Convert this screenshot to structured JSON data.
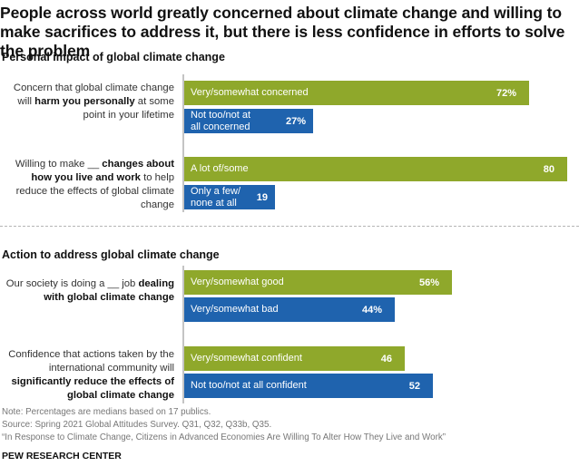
{
  "title": "People across world greatly concerned about climate change and willing to make sacrifices to address it, but there is less confidence in efforts to solve the problem",
  "colors": {
    "green": "#8fa82b",
    "blue": "#1f63ae"
  },
  "chart_data": {
    "type": "bar",
    "orientation": "horizontal",
    "unit": "%",
    "xlim": [
      0,
      80
    ],
    "sections": [
      {
        "title": "Personal impact of global climate change",
        "rows": [
          {
            "label_parts": [
              {
                "text": "Concern that global climate change will ",
                "bold": false
              },
              {
                "text": "harm you personally",
                "bold": true
              },
              {
                "text": " at some point in your lifetime",
                "bold": false
              }
            ],
            "bars": [
              {
                "category": "Very/somewhat concerned",
                "value": 72,
                "display": "72%",
                "color": "green"
              },
              {
                "category": "Not too/not at all concerned",
                "value": 27,
                "display": "27%",
                "color": "blue"
              }
            ]
          },
          {
            "label_parts": [
              {
                "text": "Willing to make __ ",
                "bold": false
              },
              {
                "text": "changes about how you live and work",
                "bold": true
              },
              {
                "text": " to help reduce the effects of global climate change",
                "bold": false
              }
            ],
            "bars": [
              {
                "category": "A lot of/some",
                "value": 80,
                "display": "80",
                "color": "green"
              },
              {
                "category": "Only a few/ none at all",
                "value": 19,
                "display": "19",
                "color": "blue"
              }
            ]
          }
        ]
      },
      {
        "title": "Action to address global climate change",
        "rows": [
          {
            "label_parts": [
              {
                "text": "Our society is doing a __ job ",
                "bold": false
              },
              {
                "text": "dealing with global climate change",
                "bold": true
              }
            ],
            "bars": [
              {
                "category": "Very/somewhat good",
                "value": 56,
                "display": "56%",
                "color": "green"
              },
              {
                "category": "Very/somewhat bad",
                "value": 44,
                "display": "44%",
                "color": "blue"
              }
            ]
          },
          {
            "label_parts": [
              {
                "text": "Confidence that actions taken by the international community will ",
                "bold": false
              },
              {
                "text": "significantly reduce the effects of global climate change",
                "bold": true
              }
            ],
            "bars": [
              {
                "category": "Very/somewhat confident",
                "value": 46,
                "display": "46",
                "color": "green"
              },
              {
                "category": "Not too/not at all confident",
                "value": 52,
                "display": "52",
                "color": "blue"
              }
            ]
          }
        ]
      }
    ]
  },
  "footer": {
    "note": "Note: Percentages are medians based on 17 publics.",
    "source": "Source: Spring 2021 Global Attitudes Survey. Q31, Q32, Q33b, Q35.",
    "report": "“In Response to Climate Change, Citizens in Advanced Economies Are Willing To Alter How They Live and Work”",
    "brand": "PEW RESEARCH CENTER"
  }
}
